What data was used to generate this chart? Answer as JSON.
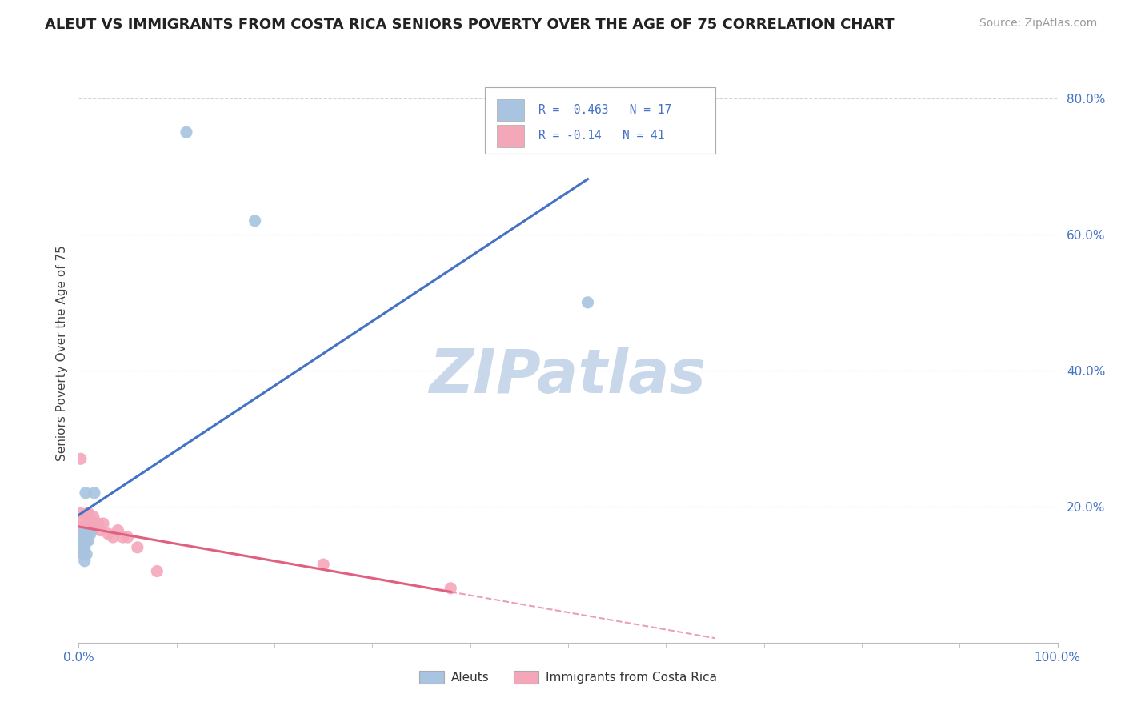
{
  "title": "ALEUT VS IMMIGRANTS FROM COSTA RICA SENIORS POVERTY OVER THE AGE OF 75 CORRELATION CHART",
  "source": "Source: ZipAtlas.com",
  "ylabel": "Seniors Poverty Over the Age of 75",
  "legend_label_1": "Aleuts",
  "legend_label_2": "Immigrants from Costa Rica",
  "R1": 0.463,
  "N1": 17,
  "R2": -0.14,
  "N2": 41,
  "aleut_color": "#a8c4e0",
  "costa_rica_color": "#f4a7b9",
  "aleut_line_color": "#4472c4",
  "costa_rica_line_color": "#e06080",
  "watermark_color": "#c8d8ea",
  "background_color": "#ffffff",
  "grid_color": "#cccccc",
  "xlim": [
    0.0,
    1.0
  ],
  "ylim": [
    0.0,
    0.85
  ],
  "y_ticks": [
    0.2,
    0.4,
    0.6,
    0.8
  ],
  "y_tick_labels": [
    "20.0%",
    "40.0%",
    "60.0%",
    "80.0%"
  ],
  "aleut_x": [
    0.003,
    0.004,
    0.004,
    0.005,
    0.005,
    0.005,
    0.006,
    0.006,
    0.007,
    0.007,
    0.008,
    0.01,
    0.012,
    0.016,
    0.52,
    0.11,
    0.18
  ],
  "aleut_y": [
    0.14,
    0.15,
    0.16,
    0.13,
    0.145,
    0.155,
    0.12,
    0.14,
    0.16,
    0.22,
    0.13,
    0.15,
    0.16,
    0.22,
    0.5,
    0.75,
    0.62
  ],
  "costa_rica_x": [
    0.001,
    0.002,
    0.002,
    0.003,
    0.003,
    0.004,
    0.004,
    0.004,
    0.005,
    0.005,
    0.005,
    0.006,
    0.006,
    0.006,
    0.007,
    0.007,
    0.008,
    0.008,
    0.009,
    0.009,
    0.01,
    0.01,
    0.011,
    0.012,
    0.013,
    0.014,
    0.015,
    0.016,
    0.018,
    0.02,
    0.022,
    0.025,
    0.03,
    0.035,
    0.04,
    0.045,
    0.05,
    0.06,
    0.08,
    0.25,
    0.38
  ],
  "costa_rica_y": [
    0.17,
    0.19,
    0.27,
    0.165,
    0.18,
    0.13,
    0.145,
    0.155,
    0.14,
    0.15,
    0.165,
    0.145,
    0.16,
    0.165,
    0.155,
    0.165,
    0.15,
    0.165,
    0.18,
    0.19,
    0.17,
    0.19,
    0.18,
    0.17,
    0.18,
    0.165,
    0.185,
    0.175,
    0.175,
    0.175,
    0.165,
    0.175,
    0.16,
    0.155,
    0.165,
    0.155,
    0.155,
    0.14,
    0.105,
    0.115,
    0.08
  ],
  "title_fontsize": 13,
  "source_fontsize": 10,
  "legend_fontsize": 11,
  "axis_label_fontsize": 11,
  "tick_fontsize": 11,
  "marker_size": 120
}
